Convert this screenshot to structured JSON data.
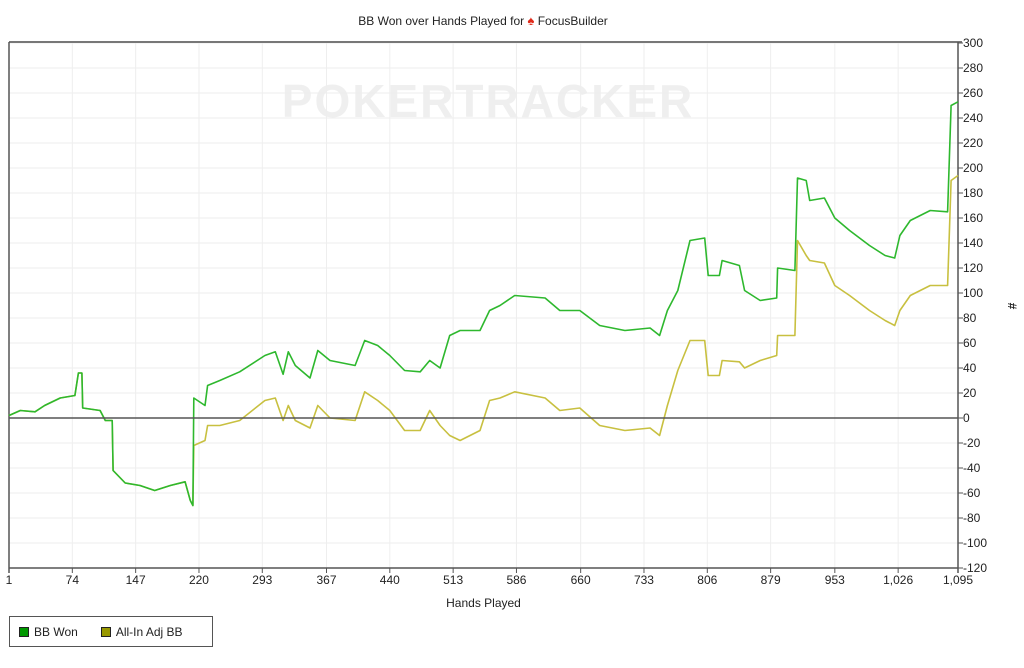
{
  "chart_data": {
    "type": "line",
    "title": "BB Won over Hands Played for",
    "title_player": "FocusBuilder",
    "title_icon": "spade-icon",
    "watermark": "POKERTRACKER",
    "xlabel": "Hands Played",
    "ylabel": "#",
    "xlim": [
      1,
      1095
    ],
    "ylim": [
      -120,
      300
    ],
    "x_ticks": [
      "1",
      "74",
      "147",
      "220",
      "293",
      "367",
      "440",
      "513",
      "586",
      "660",
      "733",
      "806",
      "879",
      "953",
      "1,026",
      "1,095"
    ],
    "x_tick_values": [
      1,
      74,
      147,
      220,
      293,
      367,
      440,
      513,
      586,
      660,
      733,
      806,
      879,
      953,
      1026,
      1095
    ],
    "y_ticks": [
      300,
      280,
      260,
      240,
      220,
      200,
      180,
      160,
      140,
      120,
      100,
      80,
      60,
      40,
      20,
      0,
      -20,
      -40,
      -60,
      -80,
      -100,
      -120
    ],
    "y_axis_side": "right",
    "grid": true,
    "legend_placement": "bottom-left",
    "series": [
      {
        "name": "BB Won",
        "color": "#2eb82e",
        "legend_color": "#009900",
        "points": [
          [
            1,
            2
          ],
          [
            14,
            6
          ],
          [
            31,
            5
          ],
          [
            42,
            10
          ],
          [
            60,
            16
          ],
          [
            77,
            18
          ],
          [
            81,
            36
          ],
          [
            85,
            36
          ],
          [
            86,
            8
          ],
          [
            106,
            6
          ],
          [
            112,
            -2
          ],
          [
            120,
            -2
          ],
          [
            121,
            -42
          ],
          [
            135,
            -52
          ],
          [
            152,
            -54
          ],
          [
            169,
            -58
          ],
          [
            187,
            -54
          ],
          [
            204,
            -51
          ],
          [
            210,
            -66
          ],
          [
            213,
            -70
          ],
          [
            214,
            16
          ],
          [
            227,
            10
          ],
          [
            230,
            26
          ],
          [
            244,
            30
          ],
          [
            267,
            37
          ],
          [
            296,
            50
          ],
          [
            308,
            53
          ],
          [
            317,
            35
          ],
          [
            323,
            53
          ],
          [
            331,
            42
          ],
          [
            348,
            32
          ],
          [
            357,
            54
          ],
          [
            371,
            46
          ],
          [
            400,
            42
          ],
          [
            411,
            62
          ],
          [
            426,
            58
          ],
          [
            440,
            50
          ],
          [
            457,
            38
          ],
          [
            475,
            37
          ],
          [
            486,
            46
          ],
          [
            498,
            40
          ],
          [
            509,
            66
          ],
          [
            521,
            70
          ],
          [
            544,
            70
          ],
          [
            555,
            86
          ],
          [
            567,
            90
          ],
          [
            584,
            98
          ],
          [
            619,
            96
          ],
          [
            636,
            86
          ],
          [
            659,
            86
          ],
          [
            682,
            74
          ],
          [
            711,
            70
          ],
          [
            740,
            72
          ],
          [
            751,
            66
          ],
          [
            760,
            86
          ],
          [
            772,
            102
          ],
          [
            786,
            142
          ],
          [
            803,
            144
          ],
          [
            807,
            114
          ],
          [
            820,
            114
          ],
          [
            823,
            126
          ],
          [
            843,
            122
          ],
          [
            849,
            102
          ],
          [
            867,
            94
          ],
          [
            886,
            96
          ],
          [
            887,
            120
          ],
          [
            907,
            118
          ],
          [
            910,
            192
          ],
          [
            920,
            190
          ],
          [
            924,
            174
          ],
          [
            941,
            176
          ],
          [
            953,
            160
          ],
          [
            970,
            150
          ],
          [
            993,
            138
          ],
          [
            1011,
            130
          ],
          [
            1022,
            128
          ],
          [
            1028,
            146
          ],
          [
            1040,
            158
          ],
          [
            1063,
            166
          ],
          [
            1083,
            165
          ],
          [
            1087,
            250
          ],
          [
            1095,
            253
          ]
        ]
      },
      {
        "name": "All-In Adj BB",
        "color": "#c8c040",
        "legend_color": "#999900",
        "points": [
          [
            1,
            2
          ],
          [
            14,
            6
          ],
          [
            31,
            5
          ],
          [
            42,
            10
          ],
          [
            60,
            16
          ],
          [
            77,
            18
          ],
          [
            81,
            36
          ],
          [
            85,
            36
          ],
          [
            86,
            8
          ],
          [
            106,
            6
          ],
          [
            112,
            -2
          ],
          [
            120,
            -2
          ],
          [
            121,
            -42
          ],
          [
            135,
            -52
          ],
          [
            152,
            -54
          ],
          [
            169,
            -58
          ],
          [
            187,
            -54
          ],
          [
            204,
            -51
          ],
          [
            210,
            -66
          ],
          [
            213,
            -70
          ],
          [
            214,
            -22
          ],
          [
            227,
            -18
          ],
          [
            230,
            -6
          ],
          [
            244,
            -6
          ],
          [
            267,
            -2
          ],
          [
            296,
            14
          ],
          [
            308,
            16
          ],
          [
            317,
            -2
          ],
          [
            323,
            10
          ],
          [
            331,
            -2
          ],
          [
            348,
            -8
          ],
          [
            357,
            10
          ],
          [
            371,
            0
          ],
          [
            400,
            -2
          ],
          [
            411,
            21
          ],
          [
            426,
            14
          ],
          [
            440,
            6
          ],
          [
            457,
            -10
          ],
          [
            475,
            -10
          ],
          [
            486,
            6
          ],
          [
            498,
            -6
          ],
          [
            509,
            -14
          ],
          [
            521,
            -18
          ],
          [
            544,
            -10
          ],
          [
            555,
            14
          ],
          [
            567,
            16
          ],
          [
            584,
            21
          ],
          [
            619,
            16
          ],
          [
            636,
            6
          ],
          [
            659,
            8
          ],
          [
            682,
            -6
          ],
          [
            711,
            -10
          ],
          [
            740,
            -8
          ],
          [
            751,
            -14
          ],
          [
            760,
            10
          ],
          [
            772,
            38
          ],
          [
            786,
            62
          ],
          [
            803,
            62
          ],
          [
            807,
            34
          ],
          [
            820,
            34
          ],
          [
            823,
            46
          ],
          [
            843,
            45
          ],
          [
            849,
            40
          ],
          [
            867,
            46
          ],
          [
            886,
            50
          ],
          [
            887,
            66
          ],
          [
            907,
            66
          ],
          [
            910,
            142
          ],
          [
            920,
            130
          ],
          [
            924,
            126
          ],
          [
            941,
            124
          ],
          [
            953,
            106
          ],
          [
            970,
            98
          ],
          [
            993,
            86
          ],
          [
            1011,
            78
          ],
          [
            1022,
            74
          ],
          [
            1028,
            86
          ],
          [
            1040,
            98
          ],
          [
            1063,
            106
          ],
          [
            1083,
            106
          ],
          [
            1087,
            190
          ],
          [
            1095,
            194
          ]
        ]
      }
    ]
  }
}
